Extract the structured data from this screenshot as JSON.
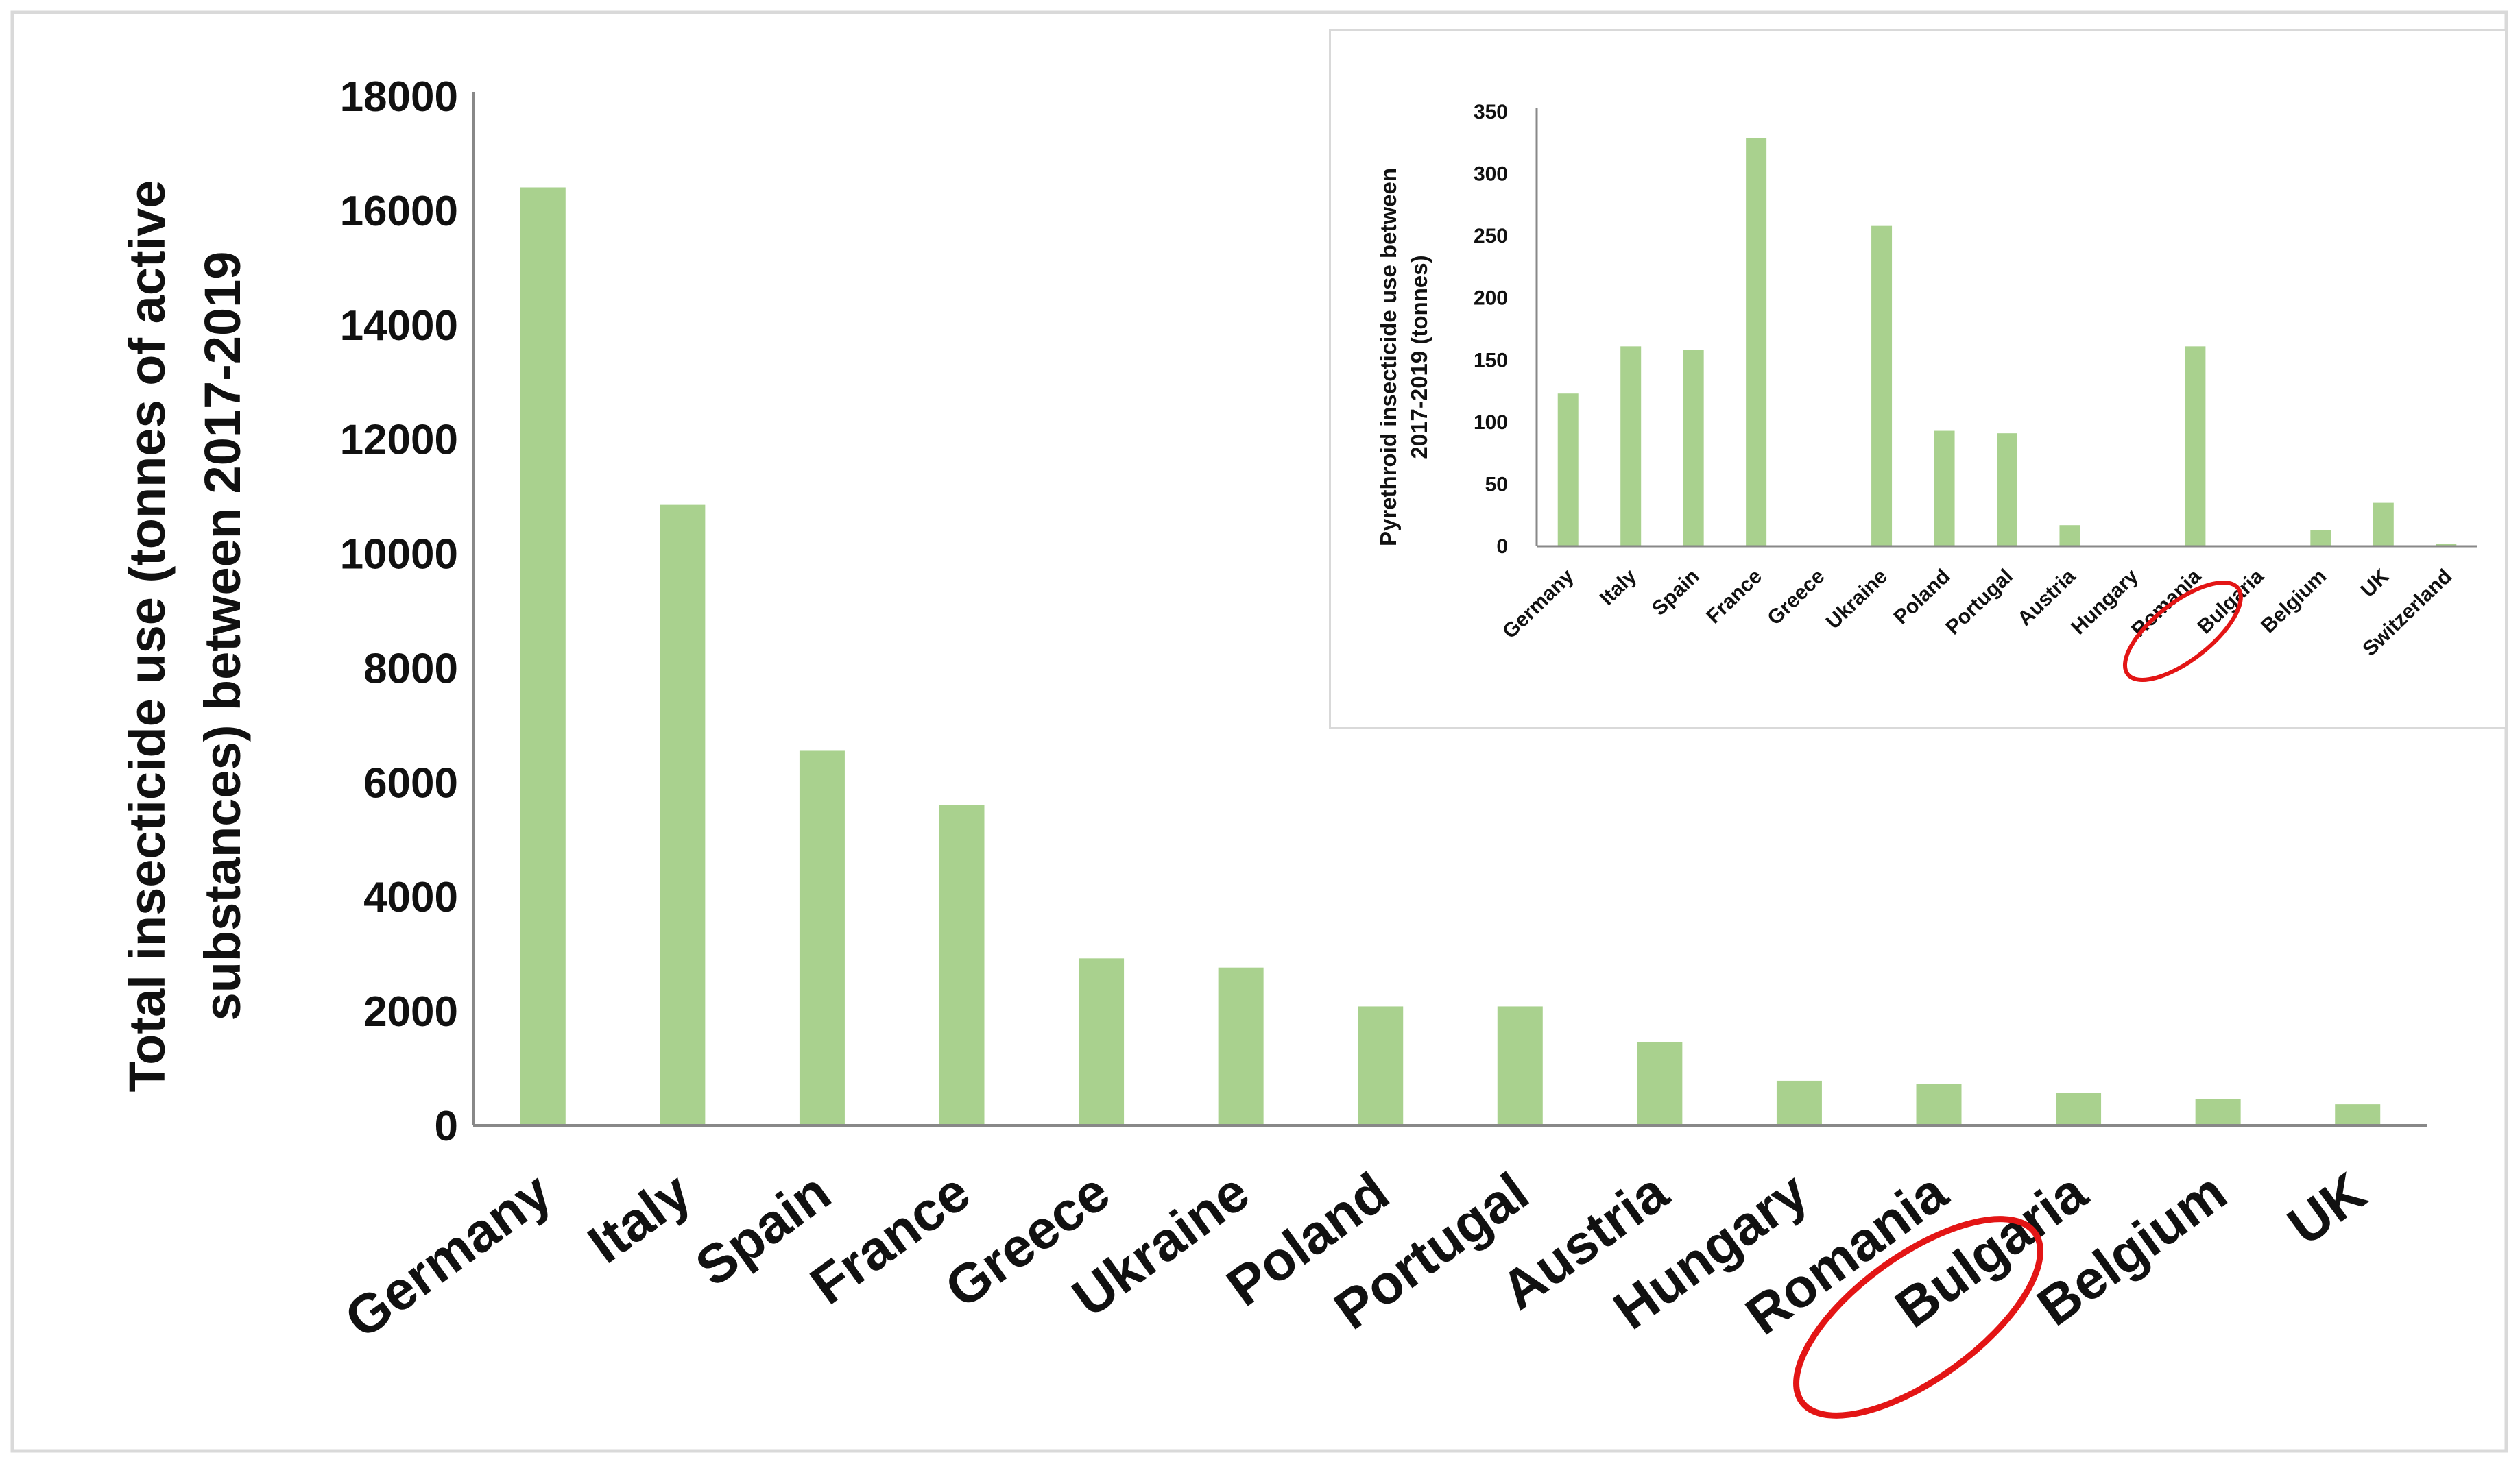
{
  "colors": {
    "bar_fill": "#a9d18e",
    "highlight_stroke": "#e31515",
    "frame_border": "#d9d9d9",
    "axis": "#888888",
    "text": "#111111"
  },
  "chart_data": [
    {
      "id": "main",
      "type": "bar",
      "title": "",
      "ylabel_line1": "Total insecticide use (tonnes of active",
      "ylabel_line2": "substances) between 2017-2019",
      "xlabel": "",
      "ylim": [
        0,
        18000
      ],
      "yticks": [
        0,
        2000,
        4000,
        6000,
        8000,
        10000,
        12000,
        14000,
        16000,
        18000
      ],
      "grid": false,
      "legend": "none",
      "categories": [
        "Germany",
        "Italy",
        "Spain",
        "France",
        "Greece",
        "Ukraine",
        "Poland",
        "Portugal",
        "Austria",
        "Hungary",
        "Romania",
        "Bulgaria",
        "Belgium",
        "UK"
      ],
      "values": [
        16400,
        10850,
        6550,
        5600,
        2920,
        2760,
        2080,
        2080,
        1460,
        780,
        730,
        570,
        460,
        370
      ],
      "highlighted_category": "Romania"
    },
    {
      "id": "inset",
      "type": "bar",
      "title": "",
      "ylabel_line1": "Pyrethroid insecticide use between",
      "ylabel_line2": "2017-2019 (tonnes)",
      "xlabel": "",
      "ylim": [
        0,
        350
      ],
      "yticks": [
        0,
        50,
        100,
        150,
        200,
        250,
        300,
        350
      ],
      "grid": false,
      "legend": "none",
      "categories": [
        "Germany",
        "Italy",
        "Spain",
        "France",
        "Greece",
        "Ukraine",
        "Poland",
        "Portugal",
        "Austria",
        "Hungary",
        "Romania",
        "Bulgaria",
        "Belgium",
        "UK",
        "Switzerland"
      ],
      "values": [
        123,
        161,
        158,
        329,
        0,
        258,
        93,
        91,
        17,
        0,
        161,
        0,
        13,
        35,
        2
      ],
      "highlighted_category": "Romania"
    }
  ]
}
